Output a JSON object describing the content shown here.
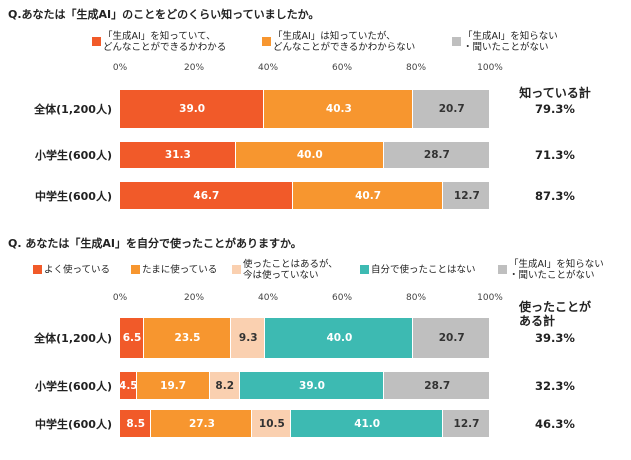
{
  "chart_data": [
    {
      "type": "stacked-bar-horizontal",
      "title": "Q.あなたは「生成AI」のことをどのくらい知っていましたか。",
      "categories": [
        "全体(1,200人)",
        "小学生(600人)",
        "中学生(600人)"
      ],
      "xlim": [
        0,
        100
      ],
      "xticks": [
        {
          "value": 0,
          "label": "0%"
        },
        {
          "value": 20,
          "label": "20%"
        },
        {
          "value": 40,
          "label": "40%"
        },
        {
          "value": 60,
          "label": "60%"
        },
        {
          "value": 80,
          "label": "80%"
        },
        {
          "value": 100,
          "label": "100%"
        }
      ],
      "series": [
        {
          "name": "「生成AI」を知っていて、\nどんなことができるかわかる",
          "color": "#f15a29",
          "values": [
            39.0,
            31.3,
            46.7
          ],
          "value_labels": [
            "39.0",
            "31.3",
            "46.7"
          ]
        },
        {
          "name": "「生成AI」は知っていたが、\nどんなことができるかわからない",
          "color": "#f7962f",
          "values": [
            40.3,
            40.0,
            40.7
          ],
          "value_labels": [
            "40.3",
            "40.0",
            "40.7"
          ]
        },
        {
          "name": "「生成AI」を知らない\n・聞いたことがない",
          "color": "#bfbfbf",
          "values": [
            20.7,
            28.7,
            12.7
          ],
          "value_labels": [
            "20.7",
            "28.7",
            "12.7"
          ]
        }
      ],
      "totals": {
        "title": "知っている計",
        "values": [
          79.3,
          71.3,
          87.3
        ],
        "value_labels": [
          "79.3%",
          "71.3%",
          "87.3%"
        ]
      }
    },
    {
      "type": "stacked-bar-horizontal",
      "title": "Q. あなたは「生成AI」を自分で使ったことがありますか。",
      "categories": [
        "全体(1,200人)",
        "小学生(600人)",
        "中学生(600人)"
      ],
      "xlim": [
        0,
        100
      ],
      "xticks": [
        {
          "value": 0,
          "label": "0%"
        },
        {
          "value": 20,
          "label": "20%"
        },
        {
          "value": 40,
          "label": "40%"
        },
        {
          "value": 60,
          "label": "60%"
        },
        {
          "value": 80,
          "label": "80%"
        },
        {
          "value": 100,
          "label": "100%"
        }
      ],
      "series": [
        {
          "name": "よく使っている",
          "color": "#f15a29",
          "values": [
            6.5,
            4.5,
            8.5
          ],
          "value_labels": [
            "6.5",
            "4.5",
            "8.5"
          ]
        },
        {
          "name": "たまに使っている",
          "color": "#f7962f",
          "values": [
            23.5,
            19.7,
            27.3
          ],
          "value_labels": [
            "23.5",
            "19.7",
            "27.3"
          ]
        },
        {
          "name": "使ったことはあるが、\n今は使っていない",
          "color": "#fad0b0",
          "values": [
            9.3,
            8.2,
            10.5
          ],
          "value_labels": [
            "9.3",
            "8.2",
            "10.5"
          ]
        },
        {
          "name": "自分で使ったことはない",
          "color": "#3dbab2",
          "values": [
            40.0,
            39.0,
            41.0
          ],
          "value_labels": [
            "40.0",
            "39.0",
            "41.0"
          ]
        },
        {
          "name": "「生成AI」を知らない\n・聞いたことがない",
          "color": "#bfbfbf",
          "values": [
            20.7,
            28.7,
            12.7
          ],
          "value_labels": [
            "20.7",
            "28.7",
            "12.7"
          ]
        }
      ],
      "totals": {
        "title": "使ったことが\nある計",
        "values": [
          39.3,
          32.3,
          46.3
        ],
        "value_labels": [
          "39.3%",
          "32.3%",
          "46.3%"
        ]
      }
    }
  ]
}
